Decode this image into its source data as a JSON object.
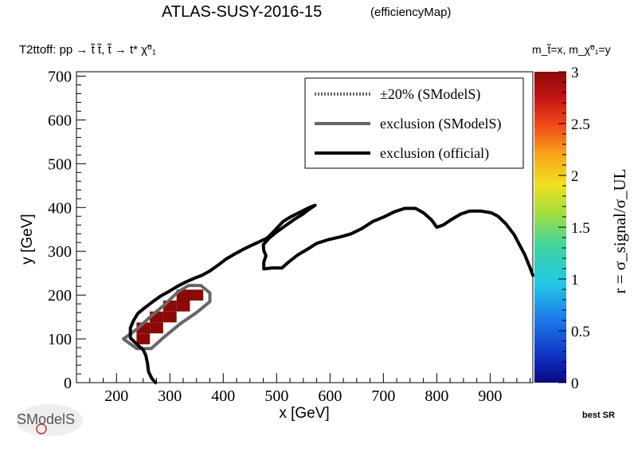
{
  "header": {
    "title": "ATLAS-SUSY-2016-15",
    "title_suffix": "(efficiencyMap)",
    "process": "T2ttoff: pp → t̃ t̃, t̃ → t* χ̃⁰₁",
    "mass_assignment": "m_t̃=x, m_χ̃⁰₁=y"
  },
  "footer": {
    "logo_text": "SModelS",
    "best_sr": "best SR"
  },
  "chart_data": {
    "type": "heatmap",
    "title": "ATLAS-SUSY-2016-15",
    "xlabel": "x [GeV]",
    "ylabel": "y [GeV]",
    "zlabel": "r = σ_signal/σ_UL",
    "xlim": [
      125,
      980
    ],
    "ylim": [
      0,
      710
    ],
    "zlim": [
      0,
      3
    ],
    "x_ticks": [
      200,
      300,
      400,
      500,
      600,
      700,
      800,
      900
    ],
    "y_ticks": [
      0,
      100,
      200,
      300,
      400,
      500,
      600,
      700
    ],
    "z_ticks": [
      "0",
      "0.5",
      "1",
      "1.5",
      "2",
      "2.5",
      "3"
    ],
    "legend": {
      "placement": "top-right",
      "entries": [
        {
          "label": "±20% (SModelS)",
          "style": "dotted",
          "color": "#666666"
        },
        {
          "label": "exclusion (SModelS)",
          "style": "solid",
          "color": "#666666"
        },
        {
          "label": "exclusion (official)",
          "style": "solid",
          "color": "#000000"
        }
      ]
    },
    "cell_size": [
      25,
      25
    ],
    "cells": [
      {
        "x": 250,
        "y": 100,
        "z": 3
      },
      {
        "x": 250,
        "y": 125,
        "z": 3
      },
      {
        "x": 275,
        "y": 125,
        "z": 3
      },
      {
        "x": 275,
        "y": 150,
        "z": 3
      },
      {
        "x": 300,
        "y": 150,
        "z": 3
      },
      {
        "x": 300,
        "y": 175,
        "z": 3
      },
      {
        "x": 325,
        "y": 175,
        "z": 3
      },
      {
        "x": 325,
        "y": 200,
        "z": 3
      },
      {
        "x": 350,
        "y": 200,
        "z": 3
      }
    ],
    "series": [
      {
        "name": "exclusion (SModelS)",
        "color": "#666666",
        "points": [
          [
            213,
            100
          ],
          [
            238,
            78
          ],
          [
            265,
            78
          ],
          [
            290,
            105
          ],
          [
            320,
            135
          ],
          [
            350,
            160
          ],
          [
            375,
            185
          ],
          [
            375,
            205
          ],
          [
            358,
            222
          ],
          [
            335,
            222
          ],
          [
            315,
            207
          ],
          [
            290,
            178
          ],
          [
            263,
            150
          ],
          [
            238,
            122
          ],
          [
            213,
            100
          ]
        ]
      },
      {
        "name": "exclusion (official)",
        "color": "#000000",
        "points": [
          [
            273,
            0
          ],
          [
            266,
            10
          ],
          [
            260,
            25
          ],
          [
            258,
            45
          ],
          [
            255,
            62
          ],
          [
            250,
            75
          ],
          [
            238,
            88
          ],
          [
            226,
            102
          ],
          [
            226,
            125
          ],
          [
            232,
            142
          ],
          [
            240,
            158
          ],
          [
            252,
            170
          ],
          [
            268,
            185
          ],
          [
            283,
            198
          ],
          [
            298,
            208
          ],
          [
            314,
            220
          ],
          [
            330,
            230
          ],
          [
            345,
            238
          ],
          [
            360,
            245
          ],
          [
            375,
            255
          ],
          [
            390,
            268
          ],
          [
            405,
            282
          ],
          [
            420,
            293
          ],
          [
            435,
            303
          ],
          [
            452,
            313
          ],
          [
            468,
            322
          ],
          [
            482,
            330
          ],
          [
            492,
            342
          ],
          [
            502,
            355
          ],
          [
            512,
            368
          ],
          [
            525,
            378
          ],
          [
            540,
            387
          ],
          [
            553,
            395
          ],
          [
            565,
            402
          ],
          [
            572,
            405
          ],
          [
            560,
            395
          ],
          [
            548,
            384
          ],
          [
            532,
            372
          ],
          [
            516,
            358
          ],
          [
            500,
            344
          ],
          [
            486,
            330
          ],
          [
            475,
            315
          ],
          [
            476,
            302
          ],
          [
            480,
            290
          ],
          [
            476,
            275
          ],
          [
            476,
            260
          ],
          [
            492,
            262
          ],
          [
            510,
            262
          ],
          [
            522,
            275
          ],
          [
            540,
            292
          ],
          [
            558,
            305
          ],
          [
            575,
            318
          ],
          [
            598,
            327
          ],
          [
            620,
            333
          ],
          [
            640,
            340
          ],
          [
            660,
            352
          ],
          [
            680,
            368
          ],
          [
            700,
            378
          ],
          [
            720,
            390
          ],
          [
            740,
            398
          ],
          [
            760,
            398
          ],
          [
            775,
            388
          ],
          [
            790,
            372
          ],
          [
            800,
            355
          ],
          [
            812,
            360
          ],
          [
            828,
            373
          ],
          [
            845,
            385
          ],
          [
            862,
            392
          ],
          [
            882,
            392
          ],
          [
            902,
            388
          ],
          [
            915,
            380
          ],
          [
            930,
            362
          ],
          [
            945,
            338
          ],
          [
            955,
            315
          ],
          [
            965,
            292
          ],
          [
            975,
            262
          ],
          [
            980,
            245
          ]
        ]
      }
    ]
  }
}
